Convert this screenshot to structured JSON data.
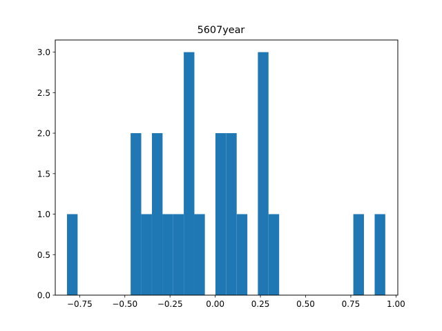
{
  "chart_data": {
    "type": "bar",
    "title": "5607year",
    "xlabel": "",
    "ylabel": "",
    "xlim": [
      -0.885,
      1.01
    ],
    "ylim": [
      0,
      3.15
    ],
    "grid": false,
    "legend": "none",
    "bar_color": "#1f77b4",
    "bin_width": 0.0587,
    "bins": [
      {
        "x0": -0.82,
        "value": 1
      },
      {
        "x0": -0.468,
        "value": 2
      },
      {
        "x0": -0.409,
        "value": 1
      },
      {
        "x0": -0.35,
        "value": 2
      },
      {
        "x0": -0.292,
        "value": 1
      },
      {
        "x0": -0.233,
        "value": 1
      },
      {
        "x0": -0.174,
        "value": 3
      },
      {
        "x0": -0.116,
        "value": 1
      },
      {
        "x0": 0.001,
        "value": 2
      },
      {
        "x0": 0.06,
        "value": 2
      },
      {
        "x0": 0.119,
        "value": 1
      },
      {
        "x0": 0.236,
        "value": 3
      },
      {
        "x0": 0.295,
        "value": 1
      },
      {
        "x0": 0.764,
        "value": 1
      },
      {
        "x0": 0.882,
        "value": 1
      }
    ],
    "x_ticks": [
      {
        "value": -0.75,
        "label": "−0.75"
      },
      {
        "value": -0.5,
        "label": "−0.50"
      },
      {
        "value": -0.25,
        "label": "−0.25"
      },
      {
        "value": 0.0,
        "label": "0.00"
      },
      {
        "value": 0.25,
        "label": "0.25"
      },
      {
        "value": 0.5,
        "label": "0.50"
      },
      {
        "value": 0.75,
        "label": "0.75"
      },
      {
        "value": 1.0,
        "label": "1.00"
      }
    ],
    "y_ticks": [
      {
        "value": 0.0,
        "label": "0.0"
      },
      {
        "value": 0.5,
        "label": "0.5"
      },
      {
        "value": 1.0,
        "label": "1.0"
      },
      {
        "value": 1.5,
        "label": "1.5"
      },
      {
        "value": 2.0,
        "label": "2.0"
      },
      {
        "value": 2.5,
        "label": "2.5"
      },
      {
        "value": 3.0,
        "label": "3.0"
      }
    ]
  }
}
